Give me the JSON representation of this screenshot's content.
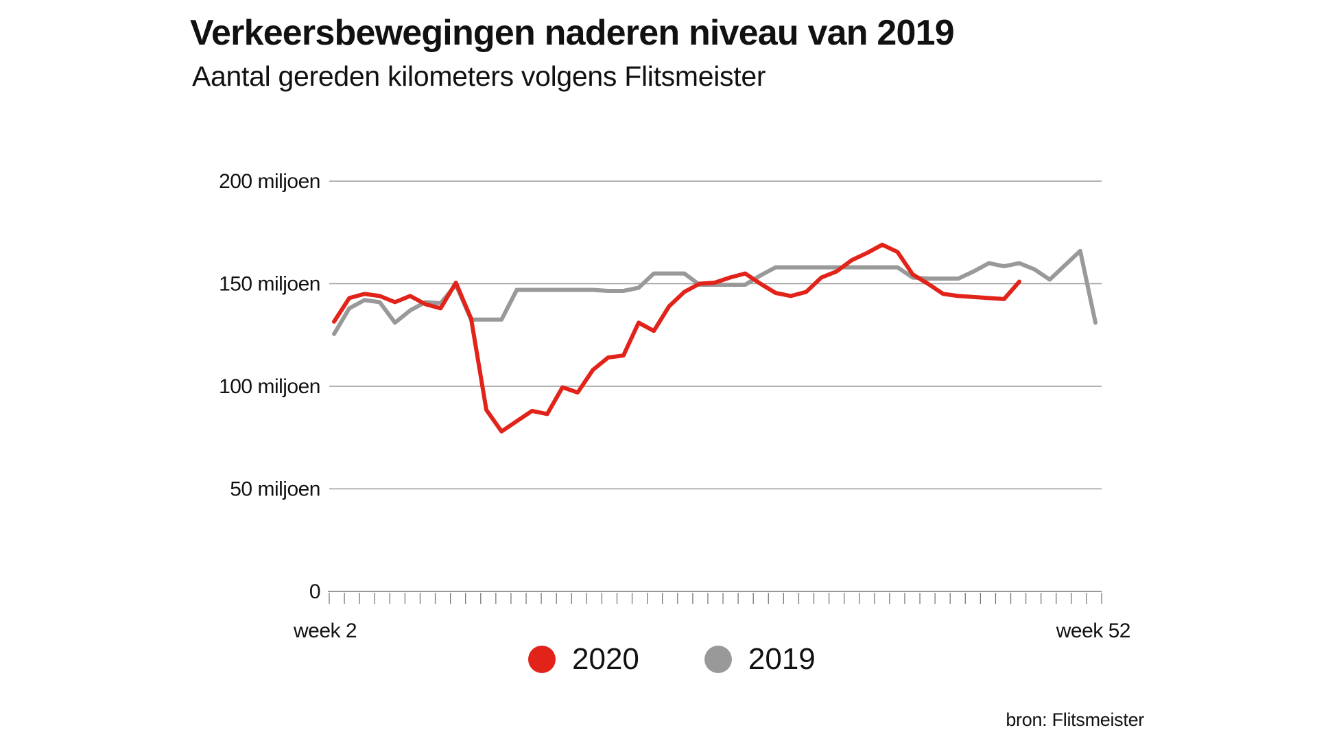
{
  "header": {
    "title": "Verkeersbewegingen naderen niveau van 2019",
    "subtitle": "Aantal gereden kilometers volgens Flitsmeister"
  },
  "source": "bron: Flitsmeister",
  "colors": {
    "series_2020": "#e2231a",
    "series_2019": "#999999",
    "grid": "#999999",
    "text": "#111111"
  },
  "chart_data": {
    "type": "line",
    "title": "Verkeersbewegingen naderen niveau van 2019",
    "subtitle": "Aantal gereden kilometers volgens Flitsmeister",
    "xlabel": "",
    "ylabel": "",
    "x": [
      2,
      3,
      4,
      5,
      6,
      7,
      8,
      9,
      10,
      11,
      12,
      13,
      14,
      15,
      16,
      17,
      18,
      19,
      20,
      21,
      22,
      23,
      24,
      25,
      26,
      27,
      28,
      29,
      30,
      31,
      32,
      33,
      34,
      35,
      36,
      37,
      38,
      39,
      40,
      41,
      42,
      43,
      44,
      45,
      46,
      47,
      48,
      49,
      50,
      51,
      52
    ],
    "x_tick_labels": [
      {
        "x": 2,
        "label": "week 2"
      },
      {
        "x": 52,
        "label": "week 52"
      }
    ],
    "xlim": [
      2,
      52
    ],
    "ylim": [
      0,
      200
    ],
    "y_ticks": [
      {
        "value": 0,
        "label": "0"
      },
      {
        "value": 50,
        "label": "50 miljoen"
      },
      {
        "value": 100,
        "label": "100 miljoen"
      },
      {
        "value": 150,
        "label": "150 miljoen"
      },
      {
        "value": 200,
        "label": "200 miljoen"
      }
    ],
    "units": "miljoen km",
    "grid": true,
    "legend_position": "bottom-center",
    "series": [
      {
        "name": "2019",
        "color": "#999999",
        "values": [
          125.5,
          138,
          142,
          141,
          131,
          137,
          141,
          140.5,
          149.5,
          132.5,
          132.5,
          132.5,
          147,
          147,
          147,
          147,
          147,
          147,
          146.5,
          146.5,
          148,
          155,
          155,
          155,
          149.5,
          149.5,
          149.5,
          149.5,
          154,
          158,
          158,
          158,
          158,
          158,
          158,
          158,
          158,
          158,
          153,
          152.5,
          152.5,
          152.5,
          156,
          160,
          158.5,
          160,
          157,
          152,
          159,
          166,
          131
        ]
      },
      {
        "name": "2020",
        "color": "#e2231a",
        "values": [
          131.5,
          143,
          145,
          144,
          141,
          144,
          140,
          138,
          150.5,
          133,
          88.5,
          78,
          83,
          88,
          86.5,
          99.5,
          97,
          108,
          114,
          115,
          131,
          127,
          139,
          146,
          150,
          150.5,
          153,
          155,
          150,
          145.5,
          144,
          146,
          153,
          156,
          161.5,
          165,
          169,
          165.5,
          154.5,
          150,
          145,
          144,
          143.5,
          143,
          142.5,
          151,
          null,
          null,
          null,
          null,
          null
        ]
      }
    ]
  },
  "legend": [
    {
      "label": "2020",
      "color": "#e2231a"
    },
    {
      "label": "2019",
      "color": "#999999"
    }
  ]
}
